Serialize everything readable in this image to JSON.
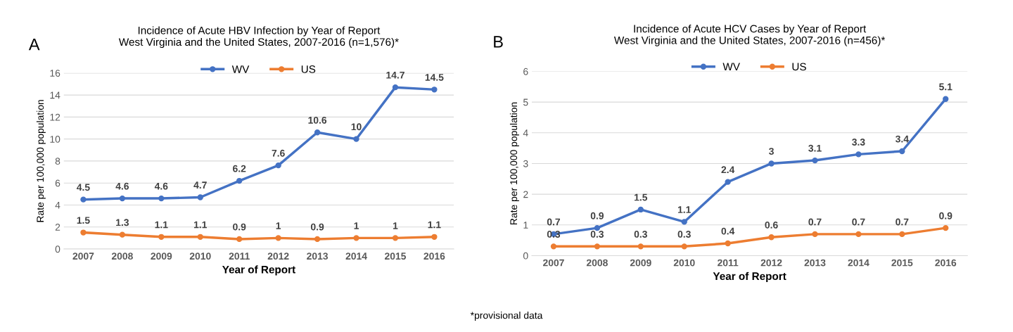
{
  "chart_data": [
    {
      "type": "line",
      "title": "Incidence of Acute HBV Infection by Year of Report\nWest Virginia and the United States, 2007-2016 (n=1,576)*",
      "xlabel": "Year of Report",
      "ylabel": "Rate per 100,000 population",
      "annotations": [
        "A"
      ],
      "categories": [
        "2007",
        "2008",
        "2009",
        "2010",
        "2011",
        "2012",
        "2013",
        "2014",
        "2015",
        "2016"
      ],
      "series": [
        {
          "name": "WV",
          "color": "#4472c4",
          "values": [
            4.5,
            4.6,
            4.6,
            4.7,
            6.2,
            7.6,
            10.6,
            10,
            14.7,
            14.5
          ]
        },
        {
          "name": "US",
          "color": "#ed7d31",
          "values": [
            1.5,
            1.3,
            1.1,
            1.1,
            0.9,
            1,
            0.9,
            1,
            1,
            1.1
          ]
        }
      ],
      "ylim": [
        0,
        16
      ],
      "yticks": [
        0,
        2,
        4,
        6,
        8,
        10,
        12,
        14,
        16
      ],
      "grid": "y",
      "legend": "top",
      "marker": "circle",
      "line_style": "solid",
      "data_labels": true
    },
    {
      "type": "line",
      "title": "Incidence of Acute HCV Cases by Year of Report\nWest Virginia and the United States, 2007-2016 (n=456)*",
      "xlabel": "Year of Report",
      "ylabel": "Rate per 100,000 population",
      "annotations": [
        "B",
        "*provisional data"
      ],
      "categories": [
        "2007",
        "2008",
        "2009",
        "2010",
        "2011",
        "2012",
        "2013",
        "2014",
        "2015",
        "2016"
      ],
      "series": [
        {
          "name": "WV",
          "color": "#4472c4",
          "values": [
            0.7,
            0.9,
            1.5,
            1.1,
            2.4,
            3,
            3.1,
            3.3,
            3.4,
            5.1
          ]
        },
        {
          "name": "US",
          "color": "#ed7d31",
          "values": [
            0.3,
            0.3,
            0.3,
            0.3,
            0.4,
            0.6,
            0.7,
            0.7,
            0.7,
            0.9
          ]
        }
      ],
      "ylim": [
        0,
        6
      ],
      "yticks": [
        0,
        1,
        2,
        3,
        4,
        5,
        6
      ],
      "grid": "y",
      "legend": "top",
      "marker": "circle",
      "line_style": "solid",
      "data_labels": true
    }
  ]
}
